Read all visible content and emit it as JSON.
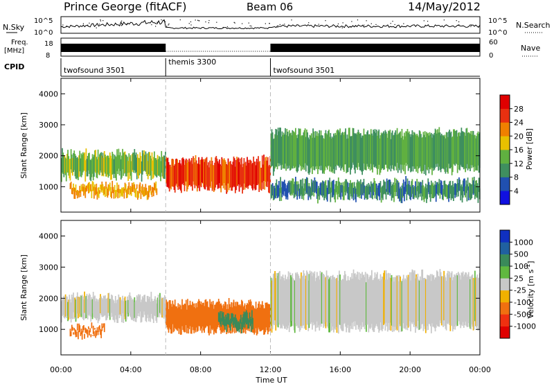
{
  "header": {
    "station": "Prince George (fitACF)",
    "beam": "Beam 06",
    "date": "14/May/2012"
  },
  "summary": {
    "nsky_label": "N.Sky",
    "nsky_ticks": [
      "10^5",
      "10^0"
    ],
    "nsearch_label": "N.Search",
    "nsearch_ticks": [
      "10^5",
      "10^0"
    ],
    "freq_label_line1": "Freq.",
    "freq_label_line2": "[MHz]",
    "freq_ticks": [
      "18",
      "8"
    ],
    "nave_label": "Nave",
    "nave_ticks": [
      "60",
      "0"
    ],
    "cpid_label": "CPID",
    "cpid_segments": [
      {
        "name": "twofsound 3501",
        "start_h": 0,
        "end_h": 6
      },
      {
        "name": "themis 3300",
        "start_h": 6,
        "end_h": 12
      },
      {
        "name": "twofsound 3501",
        "start_h": 12,
        "end_h": 24
      }
    ]
  },
  "axes": {
    "xlabel": "Time UT",
    "x_ticks": [
      "00:00",
      "04:00",
      "08:00",
      "12:00",
      "16:00",
      "20:00",
      "00:00"
    ],
    "ylabel": "Slant Range [km]",
    "y_ticks": [
      "1000",
      "2000",
      "3000",
      "4000"
    ]
  },
  "power_colorbar": {
    "label": "Power [dB]",
    "ticks": [
      "4",
      "8",
      "12",
      "16",
      "20",
      "24",
      "28"
    ],
    "colors": [
      "#1010e0",
      "#2050b0",
      "#3f8f5f",
      "#60b040",
      "#e8c000",
      "#f08000",
      "#e83010",
      "#e00000"
    ]
  },
  "velocity_colorbar": {
    "label": "Velocity [m s",
    "label_sup": "-1",
    "label_close": "]",
    "ticks": [
      "1000",
      "500",
      "100",
      "25",
      "-25",
      "-100",
      "-500",
      "-1000"
    ],
    "colors": [
      "#1030c0",
      "#2060a0",
      "#3a8a5a",
      "#60b840",
      "#c8c8c8",
      "#f0b000",
      "#f07010",
      "#f03010",
      "#e00000"
    ]
  },
  "chart_data": [
    {
      "type": "heatmap",
      "title": "Power",
      "xlabel": "Time UT",
      "ylabel": "Slant Range [km]",
      "xlim": [
        0,
        24
      ],
      "ylim": [
        180,
        4500
      ],
      "colorbar": "Power [dB]",
      "bands": [
        {
          "t": [
            0,
            6
          ],
          "r": [
            1300,
            2100
          ],
          "dB": 14
        },
        {
          "t": [
            0.5,
            5.5
          ],
          "r": [
            700,
            1100
          ],
          "dB": 20
        },
        {
          "t": [
            6,
            12
          ],
          "r": [
            900,
            1900
          ],
          "dB": 26
        },
        {
          "t": [
            12,
            24
          ],
          "r": [
            1500,
            2800
          ],
          "dB": 12
        },
        {
          "t": [
            12,
            24
          ],
          "r": [
            600,
            1200
          ],
          "dB": 10
        }
      ]
    },
    {
      "type": "heatmap",
      "title": "Velocity",
      "xlabel": "Time UT",
      "ylabel": "Slant Range [km]",
      "xlim": [
        0,
        24
      ],
      "ylim": [
        180,
        4500
      ],
      "colorbar": "Velocity [m s-1]",
      "bands": [
        {
          "t": [
            0,
            6
          ],
          "r": [
            1300,
            2100
          ],
          "velocity": 0
        },
        {
          "t": [
            0.5,
            2.5
          ],
          "r": [
            800,
            1100
          ],
          "velocity": -200
        },
        {
          "t": [
            6,
            12
          ],
          "r": [
            900,
            1900
          ],
          "velocity": -150
        },
        {
          "t": [
            9,
            11
          ],
          "r": [
            1000,
            1500
          ],
          "velocity": 100
        },
        {
          "t": [
            12,
            24
          ],
          "r": [
            1000,
            2800
          ],
          "velocity": 0
        }
      ]
    }
  ]
}
